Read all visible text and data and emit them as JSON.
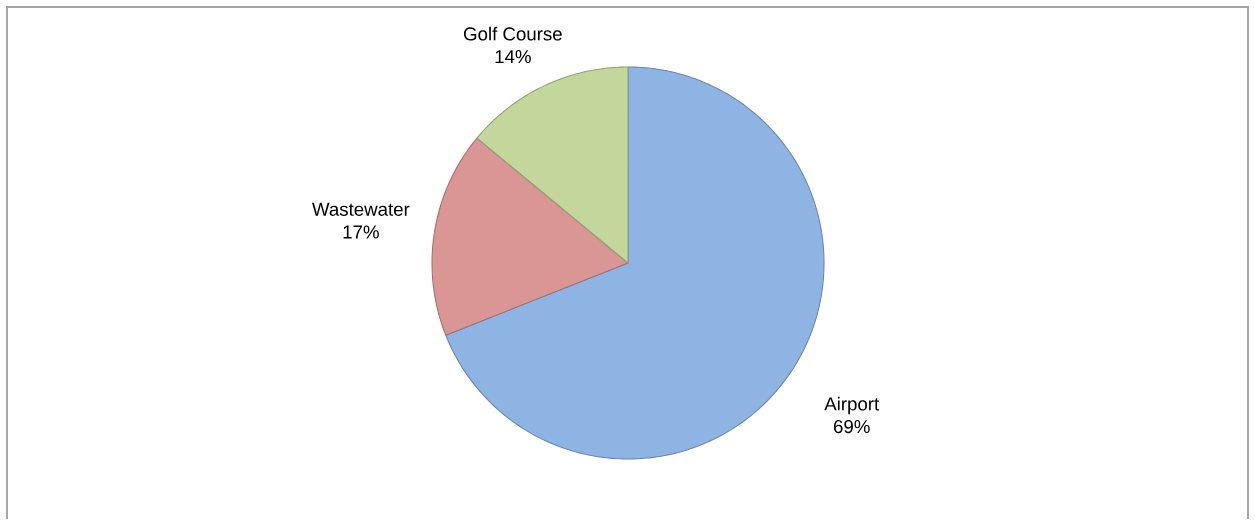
{
  "chart_data": {
    "type": "pie",
    "categories": [
      "Airport",
      "Wastewater",
      "Golf Course"
    ],
    "values": [
      69,
      17,
      14
    ],
    "value_labels": [
      "69%",
      "17%",
      "14%"
    ],
    "colors": [
      "#8eb4e3",
      "#d99694",
      "#c3d69b"
    ]
  }
}
